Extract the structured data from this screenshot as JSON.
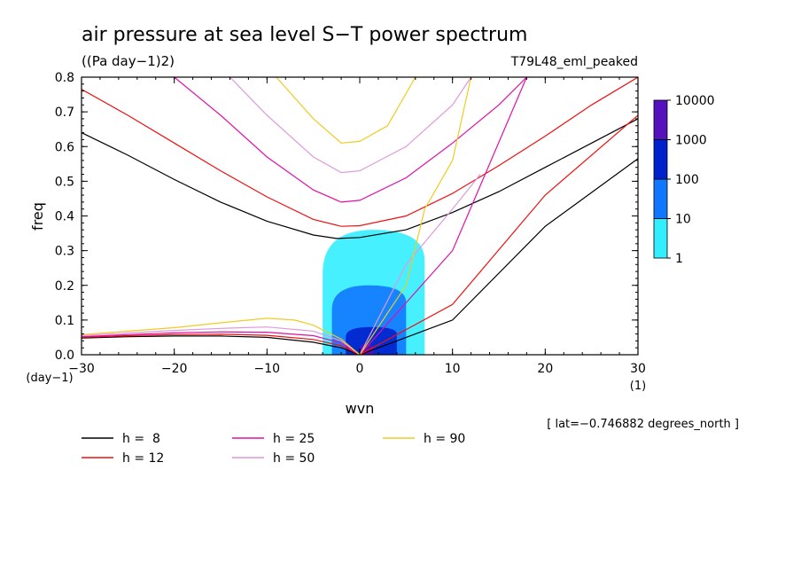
{
  "chart_data": {
    "type": "line",
    "title": "air pressure at sea level S−T power spectrum",
    "units": "((Pa day−1)2)",
    "experiment": "T79L48_eml_peaked",
    "xlabel": "wvn",
    "ylabel": "freq",
    "x_unit": "(1)",
    "y_unit": "(day−1)",
    "xlim": [
      -30,
      30
    ],
    "ylim": [
      0,
      0.8
    ],
    "x_ticks": [
      -30,
      -20,
      -10,
      0,
      10,
      20,
      30
    ],
    "y_ticks": [
      0.0,
      0.1,
      0.2,
      0.3,
      0.4,
      0.5,
      0.6,
      0.7,
      0.8
    ],
    "x_tick_labels": [
      "−30",
      "−20",
      "−10",
      "0",
      "10",
      "20",
      "30"
    ],
    "y_tick_labels": [
      "0.0",
      "0.1",
      "0.2",
      "0.3",
      "0.4",
      "0.5",
      "0.6",
      "0.7",
      "0.8"
    ],
    "footnote": "[ lat=−0.746882 degrees_north ]",
    "colorbar": {
      "levels": [
        "1",
        "10",
        "100",
        "1000",
        "10000"
      ],
      "colors": [
        "#33eeff",
        "#1177ff",
        "#0022cc",
        "#5511bb"
      ]
    },
    "series": [
      {
        "name": "h =  8",
        "color": "#000000",
        "kelvin": [
          [
            0,
            0
          ],
          [
            10,
            0.1
          ],
          [
            20,
            0.37
          ],
          [
            30,
            0.565
          ]
        ],
        "ig": [
          [
            -30,
            0.64
          ],
          [
            -25,
            0.575
          ],
          [
            -20,
            0.505
          ],
          [
            -15,
            0.44
          ],
          [
            -10,
            0.385
          ],
          [
            -5,
            0.345
          ],
          [
            -2.5,
            0.335
          ],
          [
            0,
            0.338
          ],
          [
            5,
            0.36
          ],
          [
            10,
            0.41
          ],
          [
            15,
            0.47
          ],
          [
            20,
            0.54
          ],
          [
            25,
            0.61
          ],
          [
            30,
            0.68
          ]
        ],
        "mrg": [
          [
            -30,
            0.048
          ],
          [
            -25,
            0.052
          ],
          [
            -20,
            0.054
          ],
          [
            -15,
            0.054
          ],
          [
            -10,
            0.05
          ],
          [
            -5,
            0.036
          ],
          [
            -2,
            0.02
          ],
          [
            0,
            0
          ]
        ]
      },
      {
        "name": "h = 12",
        "color": "#ee1111",
        "kelvin": [
          [
            0,
            0
          ],
          [
            10,
            0.145
          ],
          [
            20,
            0.46
          ],
          [
            30,
            0.69
          ]
        ],
        "ig": [
          [
            -30,
            0.765
          ],
          [
            -25,
            0.69
          ],
          [
            -20,
            0.61
          ],
          [
            -15,
            0.53
          ],
          [
            -10,
            0.455
          ],
          [
            -5,
            0.39
          ],
          [
            -2,
            0.37
          ],
          [
            0,
            0.372
          ],
          [
            5,
            0.4
          ],
          [
            10,
            0.465
          ],
          [
            15,
            0.545
          ],
          [
            20,
            0.63
          ],
          [
            25,
            0.72
          ],
          [
            30,
            0.8
          ]
        ],
        "mrg": [
          [
            -30,
            0.05
          ],
          [
            -25,
            0.055
          ],
          [
            -20,
            0.058
          ],
          [
            -15,
            0.059
          ],
          [
            -10,
            0.056
          ],
          [
            -5,
            0.044
          ],
          [
            -2,
            0.026
          ],
          [
            0,
            0
          ]
        ]
      },
      {
        "name": "h = 25",
        "color": "#dd11aa",
        "kelvin": [
          [
            0,
            0
          ],
          [
            10,
            0.3
          ],
          [
            18,
            0.8
          ]
        ],
        "ig": [
          [
            -20,
            0.8
          ],
          [
            -15,
            0.69
          ],
          [
            -10,
            0.57
          ],
          [
            -5,
            0.475
          ],
          [
            -2,
            0.44
          ],
          [
            0,
            0.445
          ],
          [
            5,
            0.51
          ],
          [
            10,
            0.61
          ],
          [
            15,
            0.72
          ],
          [
            18,
            0.8
          ]
        ],
        "mrg": [
          [
            -30,
            0.052
          ],
          [
            -25,
            0.058
          ],
          [
            -20,
            0.063
          ],
          [
            -15,
            0.066
          ],
          [
            -10,
            0.065
          ],
          [
            -5,
            0.055
          ],
          [
            -2,
            0.034
          ],
          [
            0,
            0
          ]
        ]
      },
      {
        "name": "h = 50",
        "color": "#dd99dd",
        "kelvin": [
          [
            0,
            0
          ],
          [
            5,
            0.26
          ],
          [
            10,
            0.42
          ],
          [
            13,
            0.52
          ]
        ],
        "ig": [
          [
            -14,
            0.8
          ],
          [
            -10,
            0.69
          ],
          [
            -5,
            0.57
          ],
          [
            -2,
            0.525
          ],
          [
            0,
            0.53
          ],
          [
            5,
            0.6
          ],
          [
            10,
            0.72
          ],
          [
            12,
            0.8
          ]
        ],
        "mrg": [
          [
            -30,
            0.055
          ],
          [
            -25,
            0.063
          ],
          [
            -20,
            0.07
          ],
          [
            -15,
            0.076
          ],
          [
            -10,
            0.08
          ],
          [
            -5,
            0.068
          ],
          [
            -2,
            0.04
          ],
          [
            0,
            0
          ]
        ]
      },
      {
        "name": "h = 90",
        "color": "#eecc22",
        "kelvin": [
          [
            0,
            0
          ],
          [
            5,
            0.2
          ],
          [
            7,
            0.42
          ],
          [
            10,
            0.56
          ],
          [
            12,
            0.8
          ]
        ],
        "ig": [
          [
            -9,
            0.8
          ],
          [
            -5,
            0.68
          ],
          [
            -2,
            0.61
          ],
          [
            0,
            0.615
          ],
          [
            3,
            0.66
          ],
          [
            6,
            0.8
          ]
        ],
        "mrg": [
          [
            -30,
            0.058
          ],
          [
            -25,
            0.068
          ],
          [
            -20,
            0.078
          ],
          [
            -15,
            0.092
          ],
          [
            -10,
            0.105
          ],
          [
            -7,
            0.1
          ],
          [
            -5,
            0.085
          ],
          [
            -2,
            0.045
          ],
          [
            0,
            0
          ]
        ]
      }
    ],
    "power_blobs": [
      {
        "level": 1,
        "x": [
          -4,
          7
        ],
        "y": [
          0.0,
          0.36
        ]
      },
      {
        "level": 2,
        "x": [
          -3,
          5
        ],
        "y": [
          0.0,
          0.2
        ]
      },
      {
        "level": 3,
        "x": [
          -1.5,
          4
        ],
        "y": [
          0.0,
          0.08
        ]
      },
      {
        "level": 4,
        "x": [
          0,
          1.5
        ],
        "y": [
          0.0,
          0.03
        ]
      }
    ]
  }
}
